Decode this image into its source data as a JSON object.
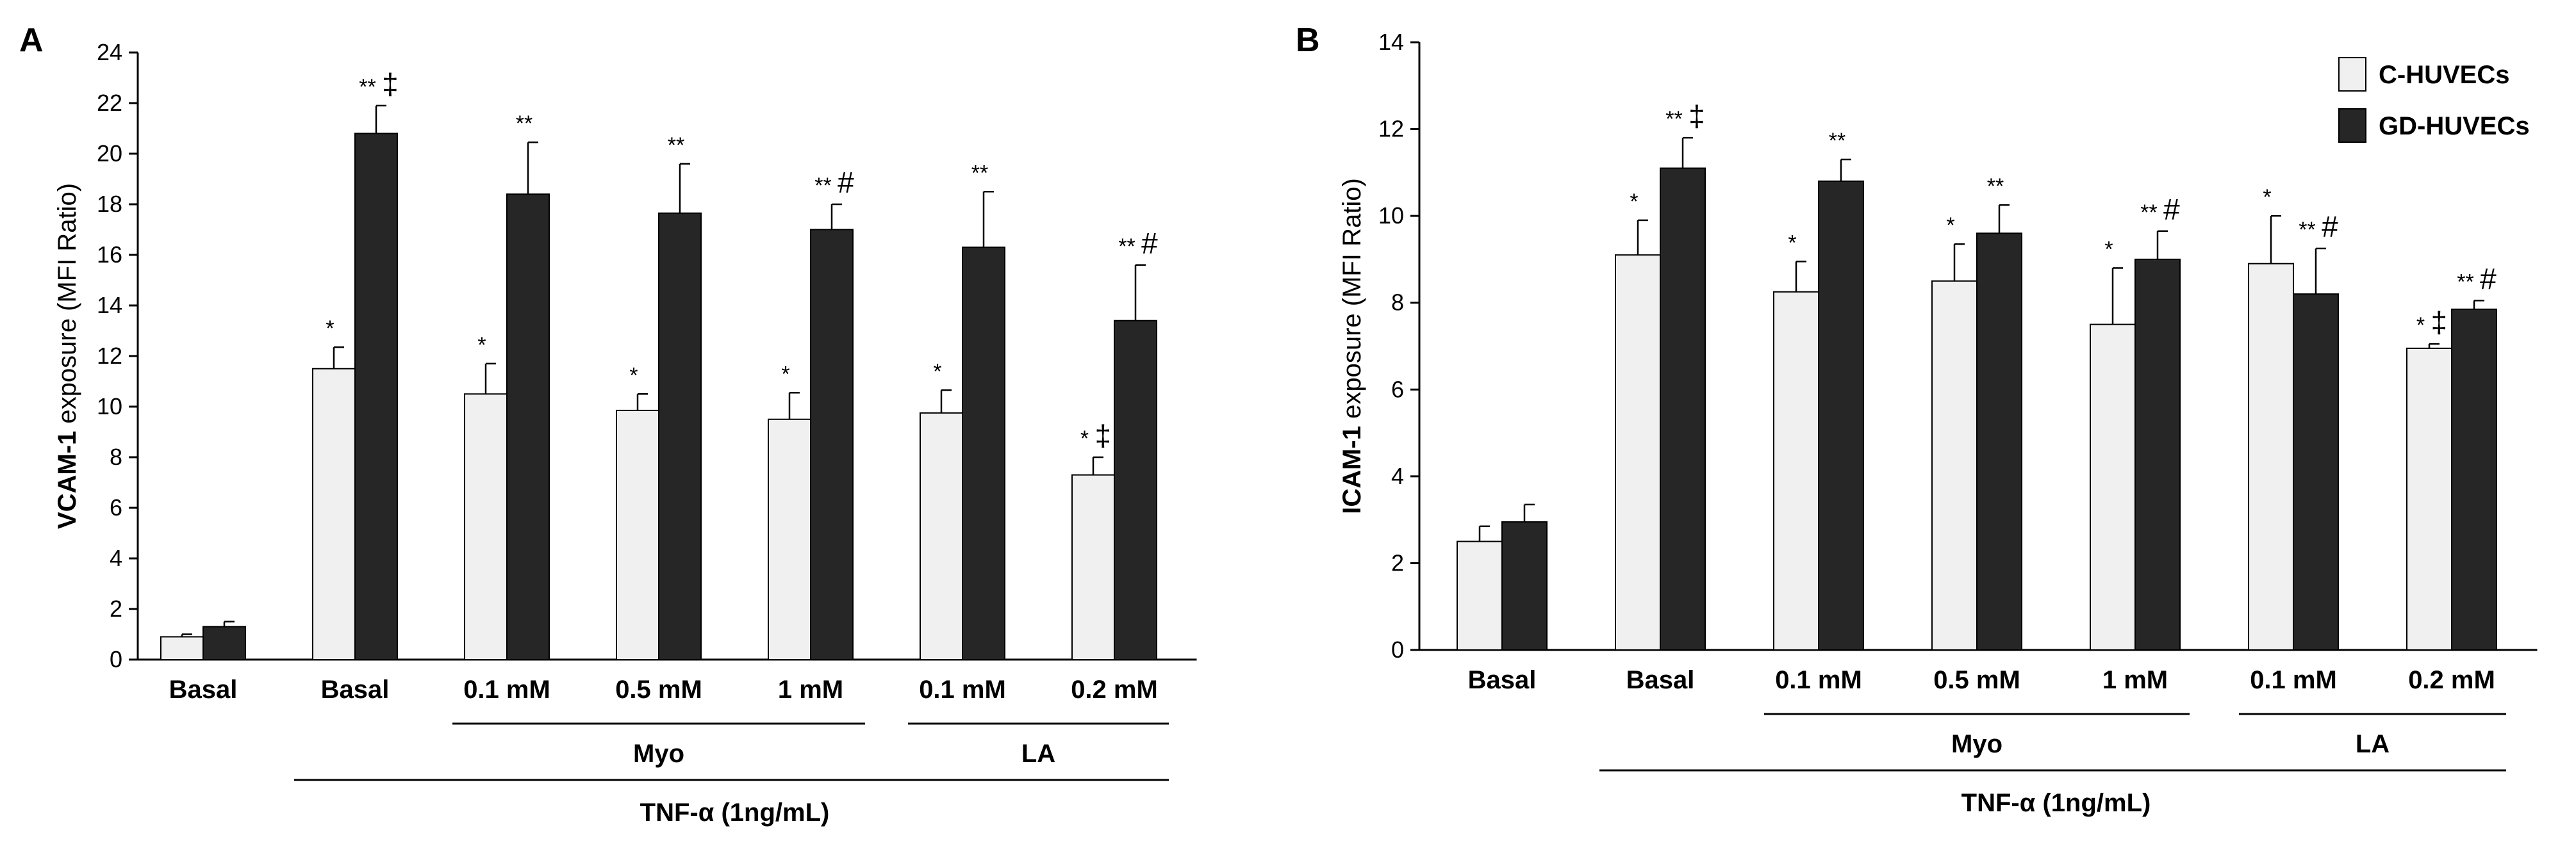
{
  "colors": {
    "c_huvecs": "#f0f0f0",
    "gd_huvecs": "#262626",
    "axis": "#000000"
  },
  "legend": [
    "C-HUVECs",
    "GD-HUVECs"
  ],
  "group_labels": {
    "myo": "Myo",
    "la": "LA",
    "tnf": "TNF-α (1ng/mL)"
  },
  "chart_data": [
    {
      "panel": "A",
      "type": "bar",
      "ylabel_bold": "VCAM-1",
      "ylabel_rest": " exposure (MFI Ratio)",
      "ylim": [
        0,
        24
      ],
      "yticks": [
        0,
        2,
        4,
        6,
        8,
        10,
        12,
        14,
        16,
        18,
        20,
        22,
        24
      ],
      "categories": [
        "Basal",
        "Basal",
        "0.1 mM",
        "0.5 mM",
        "1 mM",
        "0.1 mM",
        "0.2 mM"
      ],
      "series": [
        {
          "name": "C-HUVECs",
          "values": [
            0.9,
            11.5,
            10.5,
            9.85,
            9.5,
            9.75,
            7.3
          ],
          "errors": [
            0.1,
            0.85,
            1.2,
            0.65,
            1.05,
            0.9,
            0.7
          ],
          "annotations": [
            "",
            "*",
            "*",
            "*",
            "*",
            "*",
            "* ‡"
          ]
        },
        {
          "name": "GD-HUVECs",
          "values": [
            1.3,
            20.8,
            18.4,
            17.65,
            17.0,
            16.3,
            13.4
          ],
          "errors": [
            0.2,
            1.1,
            2.05,
            1.95,
            1.0,
            2.2,
            2.2
          ],
          "annotations": [
            "",
            "** ‡",
            "**",
            "**",
            "** #",
            "**",
            "** #"
          ]
        }
      ]
    },
    {
      "panel": "B",
      "type": "bar",
      "ylabel_bold": "ICAM-1",
      "ylabel_rest": " exposure (MFI Ratio)",
      "ylim": [
        0,
        14
      ],
      "yticks": [
        0,
        2,
        4,
        6,
        8,
        10,
        12,
        14
      ],
      "categories": [
        "Basal",
        "Basal",
        "0.1 mM",
        "0.5 mM",
        "1 mM",
        "0.1 mM",
        "0.2 mM"
      ],
      "series": [
        {
          "name": "C-HUVECs",
          "values": [
            2.5,
            9.1,
            8.25,
            8.5,
            7.5,
            8.9,
            6.95
          ],
          "errors": [
            0.35,
            0.8,
            0.7,
            0.85,
            1.3,
            1.1,
            0.1
          ],
          "annotations": [
            "",
            "*",
            "*",
            "*",
            "*",
            "*",
            "* ‡"
          ]
        },
        {
          "name": "GD-HUVECs",
          "values": [
            2.95,
            11.1,
            10.8,
            9.6,
            9.0,
            8.2,
            7.85
          ],
          "errors": [
            0.4,
            0.7,
            0.5,
            0.65,
            0.65,
            1.05,
            0.2
          ],
          "annotations": [
            "",
            "** ‡",
            "**",
            "**",
            "** #",
            "** #",
            "** #"
          ]
        }
      ]
    }
  ]
}
